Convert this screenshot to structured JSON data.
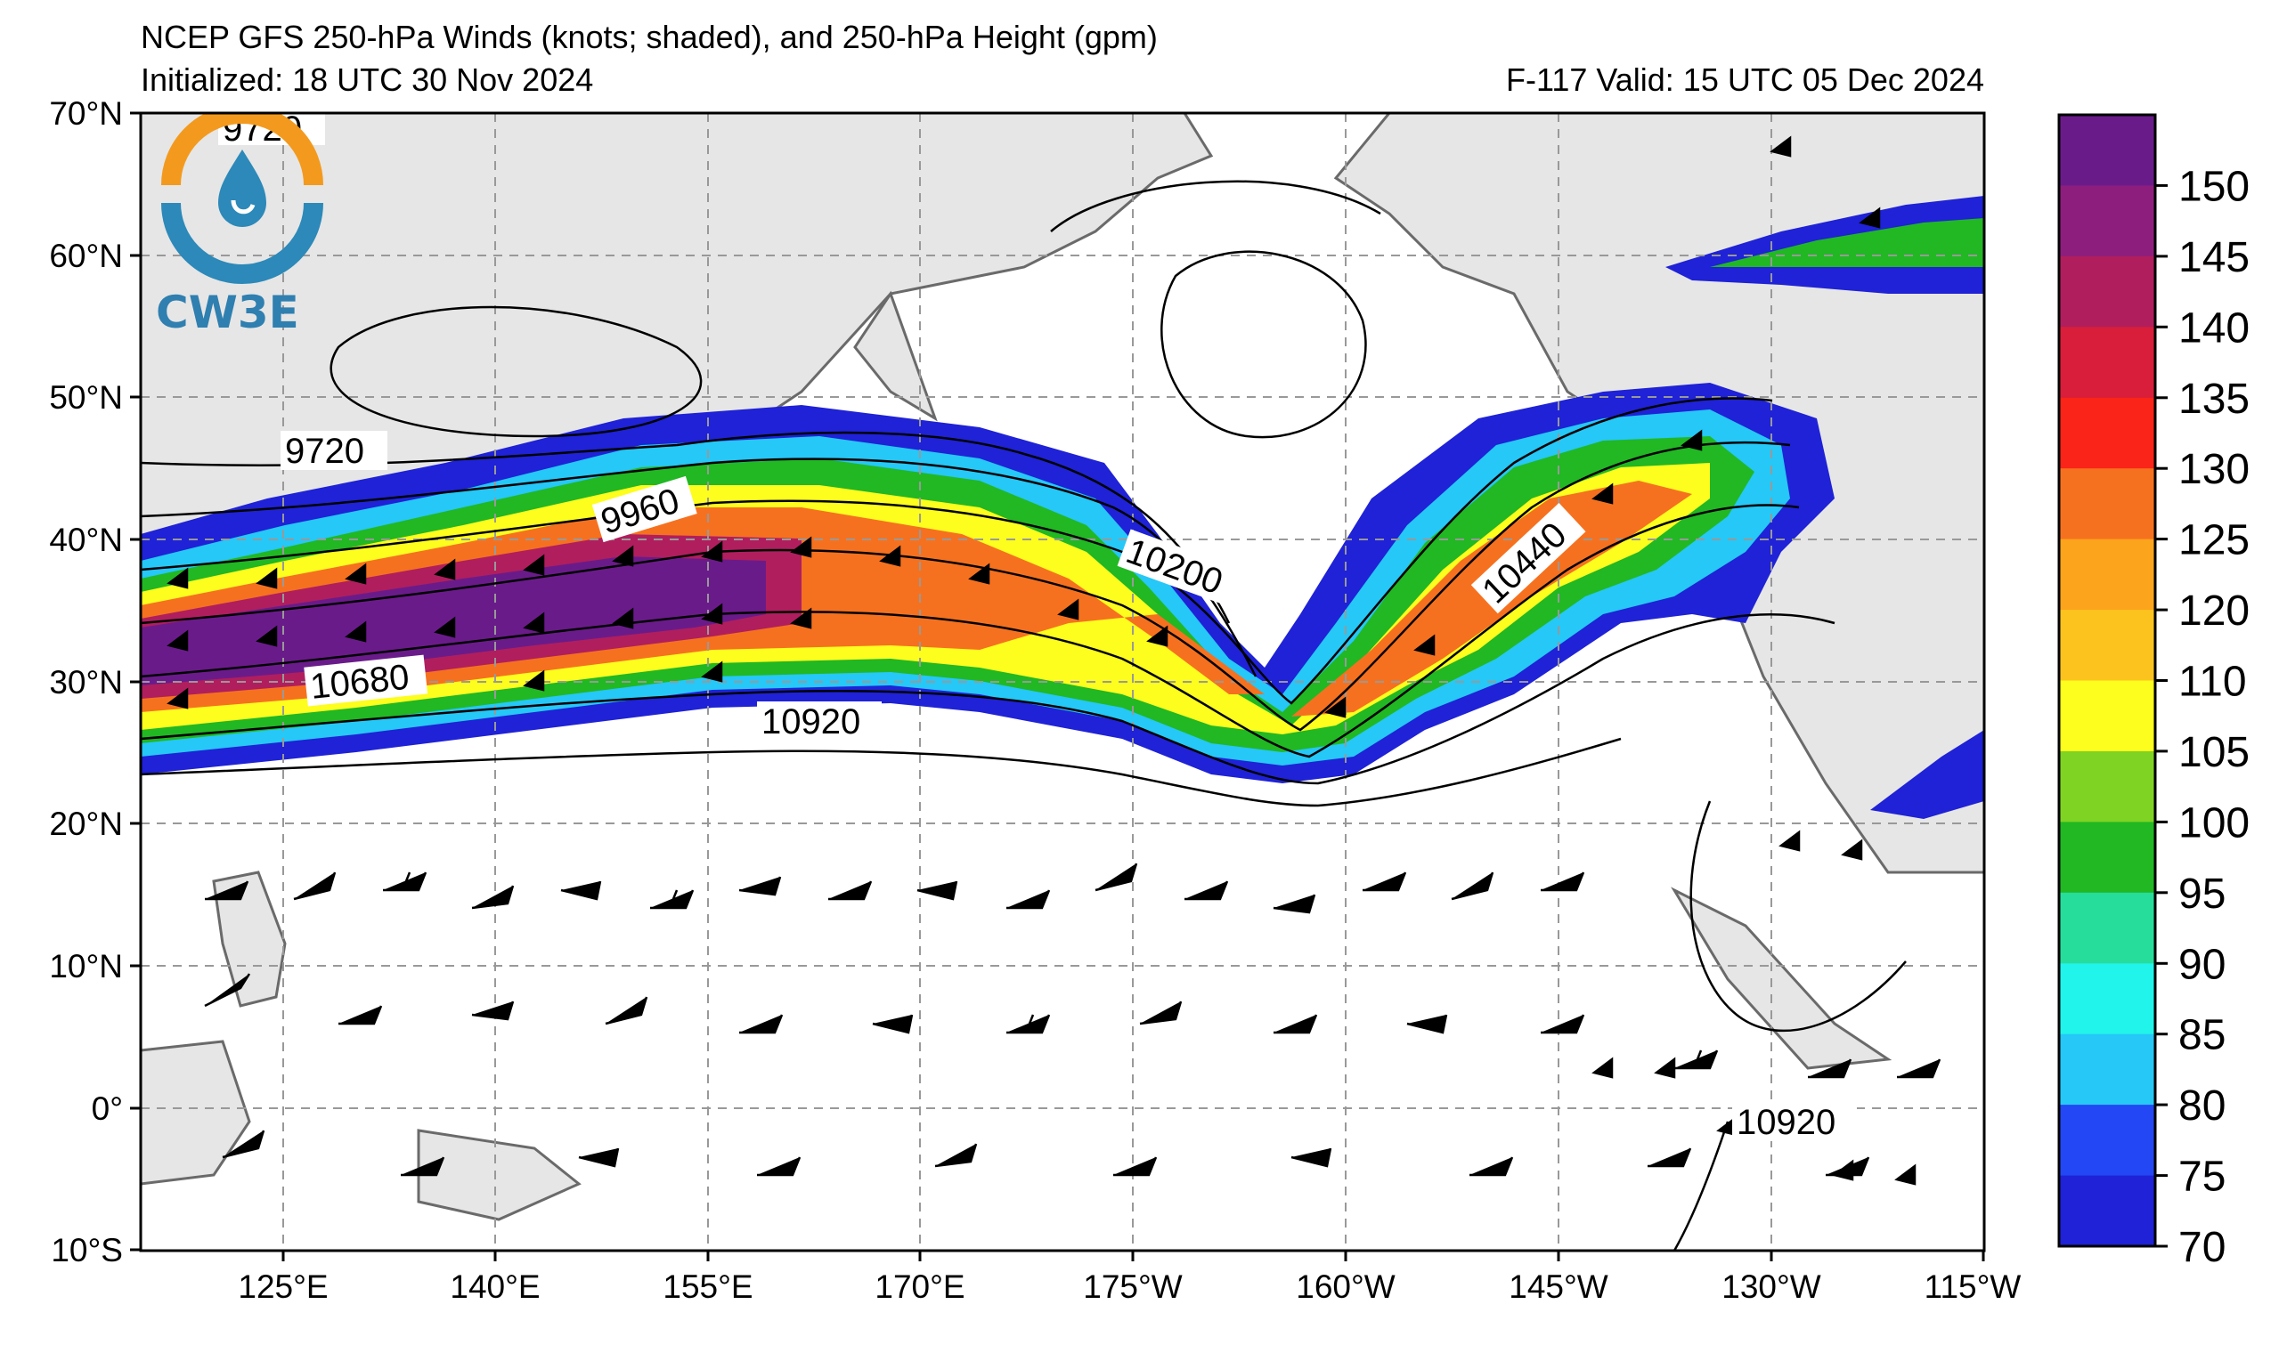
{
  "header": {
    "title": "NCEP GFS 250-hPa Winds (knots; shaded), and 250-hPa Height (gpm)",
    "initialized": "Initialized: 18 UTC 30 Nov 2024",
    "valid": "F-117  Valid: 15 UTC 05 Dec 2024"
  },
  "logo": {
    "text": "CW3E",
    "icon": "cw3e-water-drop-logo",
    "ring_color": "#f39a1e",
    "drop_color": "#2c89b9"
  },
  "map": {
    "projection": "equirectangular",
    "lon_range": [
      110,
      245
    ],
    "lat_range": [
      -10,
      70
    ],
    "land_color": "#e6e6e6",
    "grid": "dashed",
    "lat_labels": [
      "70°N",
      "60°N",
      "50°N",
      "40°N",
      "30°N",
      "20°N",
      "10°N",
      "0°",
      "10°S"
    ],
    "lon_labels": [
      "125°E",
      "140°E",
      "155°E",
      "170°E",
      "175°W",
      "160°W",
      "145°W",
      "130°W",
      "115°W"
    ],
    "contour_labels": [
      "9720",
      "9720",
      "9960",
      "10200",
      "10440",
      "10680",
      "10920",
      "10920"
    ]
  },
  "colorbar": {
    "labels": [
      "150",
      "145",
      "140",
      "135",
      "130",
      "125",
      "120",
      "110",
      "105",
      "100",
      "95",
      "90",
      "85",
      "80",
      "75",
      "70"
    ],
    "colors": [
      "#6a1b8a",
      "#8e1e7e",
      "#b01e5e",
      "#d81e3a",
      "#fa2418",
      "#f6711f",
      "#fba41c",
      "#fcc31f",
      "#fdfd1e",
      "#7fd322",
      "#21b823",
      "#26dd9c",
      "#21f4ea",
      "#25c8f7",
      "#2347f5",
      "#1f22d6"
    ]
  }
}
